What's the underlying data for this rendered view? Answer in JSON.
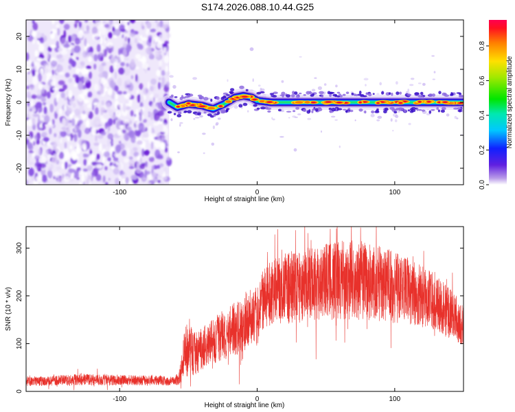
{
  "title": "S174.2026.088.10.44.G25",
  "chart_data": [
    {
      "type": "heatmap",
      "name": "spectrogram",
      "xlabel": "Height of straight line (km)",
      "ylabel": "Frequency (Hz)",
      "xlim": [
        -168,
        150
      ],
      "ylim": [
        -25,
        25
      ],
      "xticks": [
        -100,
        0,
        100
      ],
      "yticks": [
        -20,
        -10,
        0,
        10,
        20
      ],
      "colorbar": {
        "label": "Normalized spectral amplitude",
        "range": [
          0,
          0.95
        ],
        "ticks": [
          "0.0",
          "0.2",
          "0.4",
          "0.6",
          "0.8"
        ],
        "tick_values": [
          0.0,
          0.2,
          0.4,
          0.6,
          0.8
        ]
      },
      "noise_region_x": [
        -168,
        -64
      ],
      "ridge": {
        "x": [
          -64,
          -58,
          -50,
          -40,
          -32,
          -24,
          -16,
          -10,
          -4,
          0,
          10,
          30,
          60,
          100,
          150
        ],
        "y": [
          0,
          -1.5,
          -0.5,
          -1.0,
          -2.0,
          -0.5,
          1.5,
          2.0,
          1.5,
          0.5,
          0,
          0,
          0,
          0,
          0
        ]
      },
      "colors": {
        "noise_dark": "#6a1fd6",
        "noise_light": "#d7c6f5"
      }
    },
    {
      "type": "line",
      "name": "snr",
      "xlabel": "Height of straight line (km)",
      "ylabel": "SNR (10 * v/v)",
      "xlim": [
        -168,
        150
      ],
      "ylim": [
        0,
        345
      ],
      "xticks": [
        -100,
        0,
        100
      ],
      "yticks": [
        0,
        100,
        200,
        300
      ],
      "series": [
        {
          "name": "SNR",
          "color": "#e8312b",
          "envelope_x": [
            -168,
            -130,
            -64,
            -57,
            -52,
            -45,
            -30,
            -10,
            0,
            5,
            20,
            50,
            70,
            90,
            110,
            130,
            150
          ],
          "envelope_mean": [
            20,
            25,
            22,
            25,
            90,
            80,
            110,
            140,
            160,
            200,
            215,
            230,
            235,
            225,
            210,
            185,
            140
          ],
          "envelope_spread": [
            9,
            12,
            10,
            12,
            60,
            45,
            50,
            60,
            65,
            65,
            75,
            80,
            85,
            80,
            70,
            60,
            45
          ]
        }
      ]
    }
  ]
}
